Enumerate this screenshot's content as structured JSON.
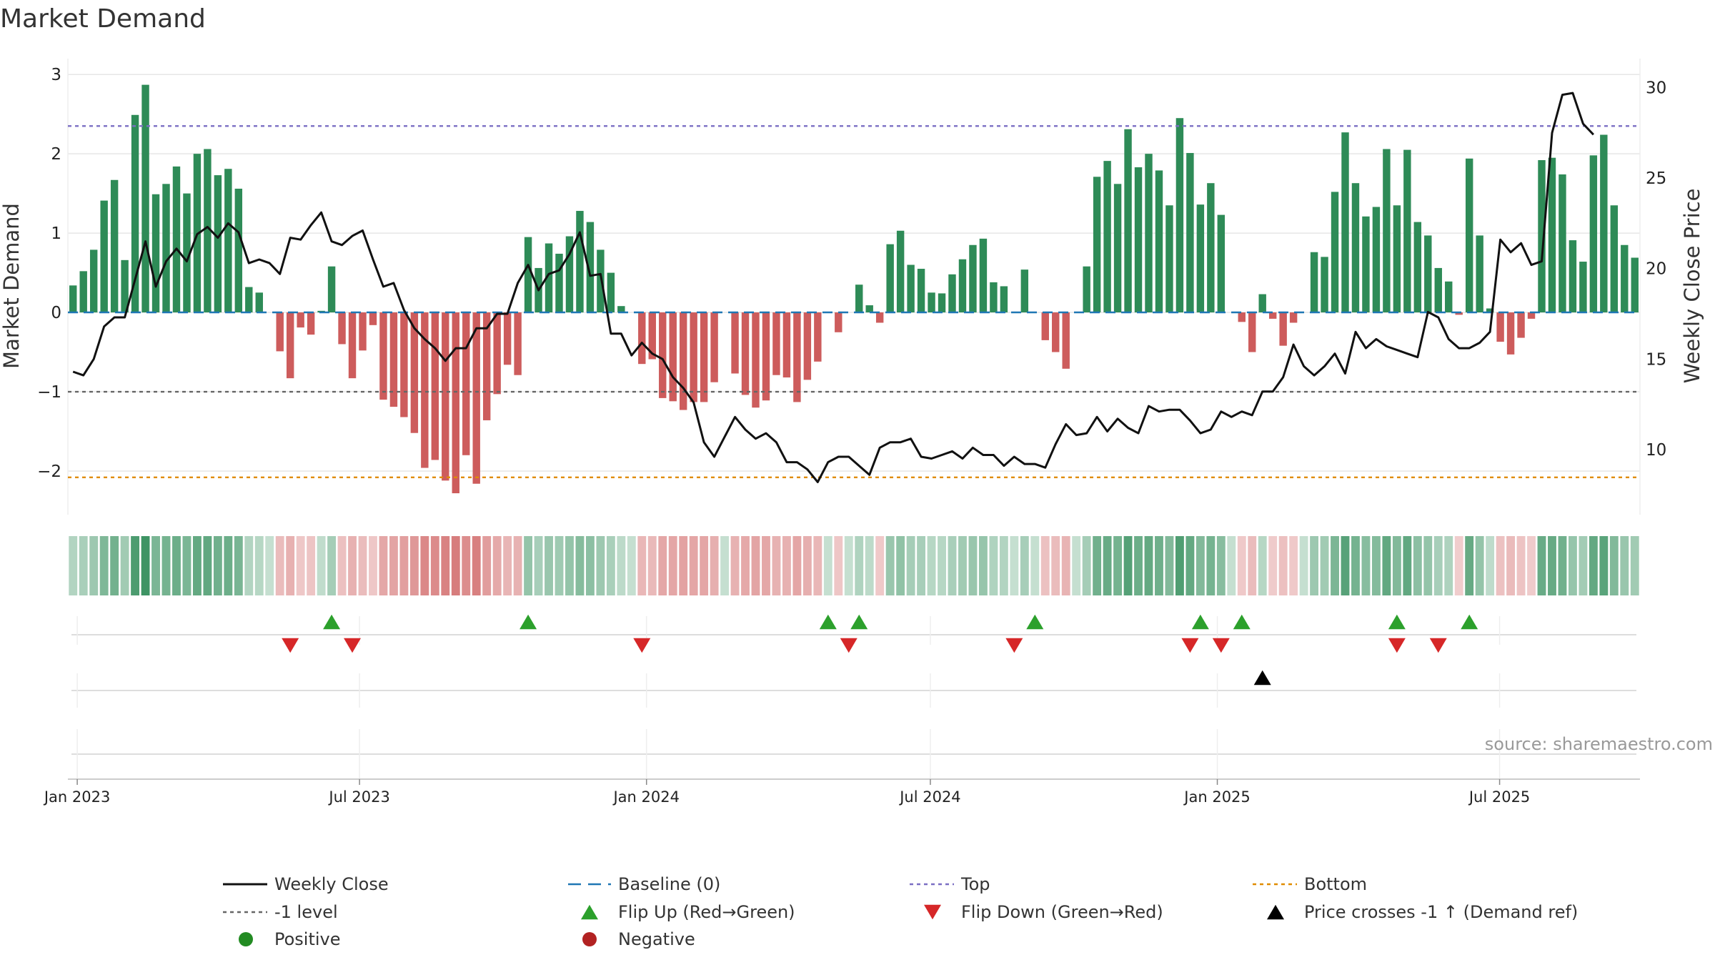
{
  "chart_data": {
    "type": "bar",
    "title": "Market Demand",
    "ylabel_left": "Market Demand",
    "ylabel_right": "Weekly Close Price",
    "source_note": "source: sharemaestro.com",
    "ylim_left": [
      -2.55,
      3.2
    ],
    "ylim_right": [
      6.4,
      31.6
    ],
    "yticks_left": [
      {
        "v": 3,
        "label": "3"
      },
      {
        "v": 2,
        "label": "2"
      },
      {
        "v": 1,
        "label": "1"
      },
      {
        "v": 0,
        "label": "0"
      },
      {
        "v": -1,
        "label": "−1"
      },
      {
        "v": -2,
        "label": "−2"
      }
    ],
    "yticks_right": [
      {
        "v": 30,
        "label": "30"
      },
      {
        "v": 25,
        "label": "25"
      },
      {
        "v": 20,
        "label": "20"
      },
      {
        "v": 15,
        "label": "15"
      },
      {
        "v": 10,
        "label": "10"
      }
    ],
    "x_start": "2022-12-26",
    "x_end": "2025-09-29",
    "date_ticks": [
      {
        "d": "2023-01-01",
        "label": "Jan 2023"
      },
      {
        "d": "2023-07-01",
        "label": "Jul 2023"
      },
      {
        "d": "2024-01-01",
        "label": "Jan 2024"
      },
      {
        "d": "2024-07-01",
        "label": "Jul 2024"
      },
      {
        "d": "2025-01-01",
        "label": "Jan 2025"
      },
      {
        "d": "2025-07-01",
        "label": "Jul 2025"
      }
    ],
    "reference_lines": [
      {
        "name": "Top",
        "value": 2.35,
        "color": "#7b6fc4"
      },
      {
        "name": "-1 level",
        "value": -1,
        "color": "#666666"
      },
      {
        "name": "Bottom",
        "value": -2.08,
        "color": "#e08c00"
      },
      {
        "name": "Baseline (0)",
        "value": 0,
        "color": "#1f77b4"
      }
    ],
    "demand": [
      0.34,
      0.52,
      0.79,
      1.41,
      1.67,
      0.66,
      2.49,
      2.87,
      1.49,
      1.62,
      1.84,
      1.5,
      2.0,
      2.06,
      1.73,
      1.81,
      1.56,
      0.32,
      0.25,
      0.0,
      -0.49,
      -0.83,
      -0.19,
      -0.28,
      0.02,
      0.58,
      -0.4,
      -0.83,
      -0.48,
      -0.16,
      -1.1,
      -1.19,
      -1.32,
      -1.52,
      -1.96,
      -1.86,
      -2.12,
      -2.28,
      -1.8,
      -2.16,
      -1.36,
      -1.03,
      -0.66,
      -0.79,
      0.95,
      0.56,
      0.87,
      0.74,
      0.96,
      1.28,
      1.14,
      0.79,
      0.5,
      0.08,
      0.0,
      -0.65,
      -0.59,
      -1.08,
      -1.12,
      -1.23,
      -1.13,
      -1.13,
      -0.88,
      0.0,
      -0.77,
      -1.04,
      -1.2,
      -1.11,
      -0.79,
      -0.82,
      -1.13,
      -0.85,
      -0.62,
      0.0,
      -0.25,
      0.0,
      0.35,
      0.09,
      -0.13,
      0.86,
      1.03,
      0.6,
      0.55,
      0.25,
      0.24,
      0.48,
      0.67,
      0.85,
      0.93,
      0.38,
      0.33,
      0.0,
      0.54,
      0.0,
      -0.35,
      -0.5,
      -0.71,
      0.0,
      0.58,
      1.71,
      1.91,
      1.62,
      2.31,
      1.83,
      2.0,
      1.79,
      1.35,
      2.45,
      2.01,
      1.36,
      1.63,
      1.23,
      0.0,
      -0.12,
      -0.5,
      0.23,
      -0.08,
      -0.42,
      -0.13,
      0.0,
      0.76,
      0.7,
      1.52,
      2.27,
      1.63,
      1.21,
      1.33,
      2.06,
      1.35,
      2.05,
      1.14,
      0.97,
      0.56,
      0.39,
      -0.03,
      1.94,
      0.97,
      0.05,
      -0.37,
      -0.53,
      -0.32,
      -0.08,
      1.92,
      1.95,
      1.74,
      0.91,
      0.64,
      1.98,
      2.24,
      1.35,
      0.85,
      0.69
    ],
    "close": [
      14.3,
      14.1,
      15.0,
      16.8,
      17.3,
      17.3,
      19.4,
      21.5,
      19.0,
      20.4,
      21.1,
      20.4,
      21.9,
      22.3,
      21.7,
      22.5,
      22.0,
      20.3,
      20.5,
      20.3,
      19.7,
      21.7,
      21.6,
      22.4,
      23.1,
      21.5,
      21.3,
      21.8,
      22.1,
      20.5,
      19.0,
      19.2,
      17.7,
      16.7,
      16.1,
      15.6,
      14.9,
      15.6,
      15.6,
      16.7,
      16.7,
      17.5,
      17.5,
      19.2,
      20.2,
      18.8,
      19.7,
      19.9,
      20.8,
      22.0,
      19.6,
      19.7,
      16.4,
      16.4,
      15.2,
      15.9,
      15.3,
      15.0,
      14.0,
      13.4,
      12.6,
      10.4,
      9.6,
      10.7,
      11.8,
      11.1,
      10.6,
      10.9,
      10.4,
      9.3,
      9.3,
      8.9,
      8.2,
      9.3,
      9.6,
      9.6,
      9.1,
      8.6,
      10.1,
      10.4,
      10.4,
      10.6,
      9.6,
      9.5,
      9.7,
      9.9,
      9.5,
      10.1,
      9.7,
      9.7,
      9.1,
      9.6,
      9.2,
      9.2,
      9.0,
      10.3,
      11.4,
      10.8,
      10.9,
      11.8,
      11.0,
      11.7,
      11.2,
      10.9,
      12.4,
      12.1,
      12.2,
      12.2,
      11.6,
      10.9,
      11.1,
      12.1,
      11.8,
      12.1,
      11.9,
      13.2,
      13.2,
      14.0,
      15.8,
      14.6,
      14.1,
      14.6,
      15.3,
      14.2,
      16.5,
      15.6,
      16.1,
      15.7,
      15.5,
      15.3,
      15.1,
      17.6,
      17.3,
      16.1,
      15.6,
      15.6,
      15.9,
      16.5,
      21.6,
      20.9,
      21.4,
      20.2,
      20.4,
      27.5,
      29.6,
      29.7,
      28.0,
      27.4
    ],
    "flip_up": [
      25,
      44,
      73,
      76,
      93,
      109,
      113,
      128,
      135
    ],
    "flip_down": [
      21,
      27,
      55,
      75,
      91,
      108,
      111,
      128,
      132
    ],
    "price_cross_up": [
      115
    ],
    "legend": [
      {
        "key": "weekly-close",
        "label": "Weekly Close"
      },
      {
        "key": "baseline",
        "label": "Baseline (0)"
      },
      {
        "key": "top",
        "label": "Top"
      },
      {
        "key": "bottom",
        "label": "Bottom"
      },
      {
        "key": "minus-one",
        "label": "-1 level"
      },
      {
        "key": "flip-up",
        "label": "Flip Up (Red→Green)"
      },
      {
        "key": "flip-down",
        "label": "Flip Down (Green→Red)"
      },
      {
        "key": "price-cross",
        "label": "Price crosses -1 ↑ (Demand ref)"
      },
      {
        "key": "positive",
        "label": "Positive"
      },
      {
        "key": "negative",
        "label": "Negative"
      }
    ],
    "colors": {
      "pos_bar": "#2e8b57",
      "neg_bar": "#cd5c5c",
      "close_line": "#111111",
      "flip_up": "#2ca02c",
      "flip_down": "#d62728",
      "price_cross": "#000000",
      "positive_dot": "#228b22",
      "negative_dot": "#b22222",
      "grid": "#e6e6e6",
      "axis": "#cccccc"
    }
  }
}
